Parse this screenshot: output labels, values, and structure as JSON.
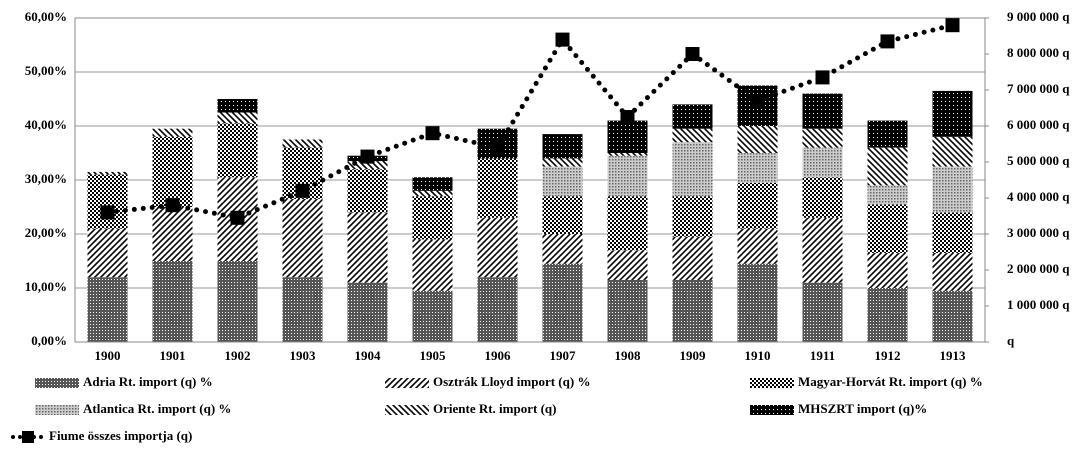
{
  "chart_data": {
    "type": "bar",
    "stacked": true,
    "grid": true,
    "categories": [
      "1900",
      "1901",
      "1902",
      "1903",
      "1904",
      "1905",
      "1906",
      "1907",
      "1908",
      "1909",
      "1910",
      "1911",
      "1912",
      "1913"
    ],
    "series": [
      {
        "name": "Adria Rt. import (q) %",
        "color": "#000000",
        "pattern": "dense-dots",
        "values": [
          12,
          15,
          15,
          12,
          11,
          9.5,
          12,
          14.5,
          11.5,
          11.5,
          14.5,
          11,
          10,
          9.5
        ]
      },
      {
        "name": "Osztrák Lloyd import (q) %",
        "color": "#000000",
        "pattern": "forward-lines",
        "values": [
          9,
          10,
          15.5,
          14.5,
          13,
          9.5,
          11,
          5.5,
          5.5,
          8,
          6.5,
          12,
          6.5,
          7
        ]
      },
      {
        "name": "Magyar-Horvát Rt. import (q) %",
        "color": "#000000",
        "pattern": "checker",
        "values": [
          10,
          13,
          10,
          9.5,
          8,
          8,
          11,
          7,
          10,
          7.5,
          8.5,
          7.5,
          9,
          7.5
        ]
      },
      {
        "name": "Atlantica Rt. import (q) %",
        "color": "#666666",
        "pattern": "light-dots",
        "values": [
          0,
          0,
          0,
          0,
          0,
          0,
          0,
          5.5,
          7.5,
          10,
          5.5,
          5.5,
          3.5,
          8.5
        ]
      },
      {
        "name": "Oriente Rt. import (q)",
        "color": "#000000",
        "pattern": "back-lines",
        "values": [
          0.5,
          1.5,
          2,
          1.5,
          1.5,
          1,
          0,
          1.5,
          0.5,
          2.5,
          5,
          3.5,
          7,
          5.5
        ]
      },
      {
        "name": "MHSZRT import (q)%",
        "color": "#000000",
        "pattern": "dark-dots",
        "values": [
          0,
          0,
          2.5,
          0,
          1,
          2.5,
          5.5,
          4.5,
          6,
          4.5,
          7.5,
          6.5,
          5,
          8.5
        ]
      },
      {
        "name": "Fiume összes importja (q)",
        "color": "#000000",
        "type": "line",
        "axis": "y2",
        "values": [
          3600000,
          3800000,
          3450000,
          4200000,
          5150000,
          5800000,
          5400000,
          8400000,
          6250000,
          8000000,
          6700000,
          7350000,
          8350000,
          8800000
        ]
      }
    ],
    "ylim": [
      0,
      60
    ],
    "yticks": [
      {
        "value": 0,
        "label": "0,00%"
      },
      {
        "value": 10,
        "label": "10,00%"
      },
      {
        "value": 20,
        "label": "20,00%"
      },
      {
        "value": 30,
        "label": "30,00%"
      },
      {
        "value": 40,
        "label": "40,00%"
      },
      {
        "value": 50,
        "label": "50,00%"
      },
      {
        "value": 60,
        "label": "60,00%"
      }
    ],
    "y2lim": [
      0,
      9000000
    ],
    "y2ticks": [
      {
        "value": 0,
        "label": "q"
      },
      {
        "value": 1000000,
        "label": "1 000 000 q"
      },
      {
        "value": 2000000,
        "label": "2 000 000 q"
      },
      {
        "value": 3000000,
        "label": "3 000 000 q"
      },
      {
        "value": 4000000,
        "label": "4 000 000 q"
      },
      {
        "value": 5000000,
        "label": "5 000 000 q"
      },
      {
        "value": 6000000,
        "label": "6 000 000 q"
      },
      {
        "value": 7000000,
        "label": "7 000 000 q"
      },
      {
        "value": 8000000,
        "label": "8 000 000 q"
      },
      {
        "value": 9000000,
        "label": "9 000 000 q"
      }
    ]
  }
}
